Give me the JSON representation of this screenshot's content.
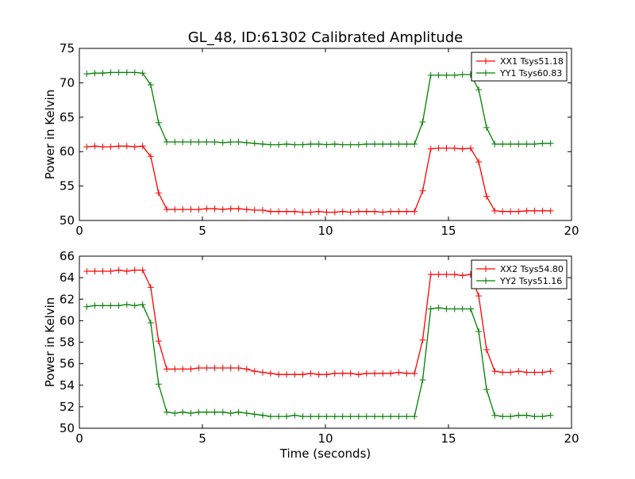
{
  "figure": {
    "title": "GL_48, ID:61302 Calibrated Amplitude"
  },
  "colors": {
    "red": "#ff0000",
    "green": "#008000"
  },
  "chart_data": [
    {
      "type": "line",
      "title": "GL_48, ID:61302 Calibrated Amplitude",
      "xlabel": "",
      "ylabel": "Power in Kelvin",
      "xlim": [
        0,
        20
      ],
      "ylim": [
        50,
        75
      ],
      "xticks": [
        "0",
        "5",
        "10",
        "15",
        "20"
      ],
      "yticks": [
        "50",
        "55",
        "60",
        "65",
        "70",
        "75"
      ],
      "legend_position": "top-right",
      "x": [
        0.3,
        0.63,
        0.95,
        1.27,
        1.6,
        1.93,
        2.25,
        2.57,
        2.9,
        3.22,
        3.55,
        3.88,
        4.2,
        4.53,
        4.85,
        5.17,
        5.5,
        5.83,
        6.15,
        6.47,
        6.8,
        7.12,
        7.45,
        7.77,
        8.1,
        8.42,
        8.75,
        9.08,
        9.4,
        9.73,
        10.05,
        10.38,
        10.7,
        11.02,
        11.35,
        11.67,
        12.0,
        12.33,
        12.65,
        12.98,
        13.3,
        13.62,
        13.95,
        14.28,
        14.6,
        14.92,
        15.25,
        15.57,
        15.9,
        16.23,
        16.55,
        16.88,
        17.2,
        17.52,
        17.85,
        18.18,
        18.5,
        18.82,
        19.15
      ],
      "series": [
        {
          "name": "XX1 Tsys51.18",
          "color": "#ff0000",
          "values": [
            60.7,
            60.8,
            60.7,
            60.7,
            60.8,
            60.8,
            60.7,
            60.8,
            59.3,
            54.0,
            51.6,
            51.6,
            51.6,
            51.6,
            51.6,
            51.7,
            51.7,
            51.6,
            51.7,
            51.7,
            51.6,
            51.5,
            51.5,
            51.3,
            51.3,
            51.3,
            51.3,
            51.2,
            51.2,
            51.3,
            51.2,
            51.2,
            51.3,
            51.2,
            51.3,
            51.3,
            51.3,
            51.2,
            51.3,
            51.3,
            51.3,
            51.3,
            54.3,
            60.4,
            60.5,
            60.5,
            60.5,
            60.4,
            60.5,
            58.5,
            53.5,
            51.4,
            51.3,
            51.3,
            51.3,
            51.4,
            51.4,
            51.4,
            51.4
          ],
          "x_override": [
            0.3,
            0.63,
            0.95,
            1.27,
            1.6,
            1.93,
            2.25,
            2.45,
            2.72,
            3.0,
            3.3,
            3.62,
            3.95,
            4.27,
            4.6,
            4.92,
            5.25,
            5.57,
            5.9,
            6.22,
            6.55,
            6.87,
            7.2,
            7.52,
            7.85,
            8.17,
            8.5,
            8.82,
            9.15,
            9.47,
            9.8,
            10.12,
            10.45,
            10.77,
            11.1,
            11.42,
            11.75,
            12.07,
            12.4,
            12.72,
            12.92,
            13.0,
            13.3,
            13.58,
            13.9,
            14.22,
            14.55,
            14.87,
            15.0,
            15.27,
            15.55,
            15.85,
            16.17,
            16.5,
            16.82,
            17.15,
            17.47,
            17.8,
            19.15
          ]
        },
        {
          "name": "YY1 Tsys60.83",
          "color": "#008000",
          "values": [
            71.3,
            71.4,
            71.4,
            71.5,
            71.5,
            71.5,
            71.5,
            71.4,
            69.7,
            64.2,
            61.4,
            61.4,
            61.4,
            61.4,
            61.4,
            61.4,
            61.4,
            61.3,
            61.4,
            61.4,
            61.3,
            61.2,
            61.1,
            61.0,
            61.0,
            61.1,
            61.0,
            61.0,
            61.1,
            61.1,
            61.0,
            61.1,
            61.0,
            61.0,
            61.0,
            61.1,
            61.1,
            61.1,
            61.1,
            61.1,
            61.1,
            61.1,
            64.3,
            71.1,
            71.1,
            71.1,
            71.1,
            71.2,
            71.2,
            69.0,
            63.5,
            61.1,
            61.1,
            61.1,
            61.1,
            61.1,
            61.1,
            61.2,
            61.2
          ]
        }
      ]
    },
    {
      "type": "line",
      "title": "",
      "xlabel": "Time (seconds)",
      "ylabel": "Power in Kelvin",
      "xlim": [
        0,
        20
      ],
      "ylim": [
        50,
        66
      ],
      "xticks": [
        "0",
        "5",
        "10",
        "15",
        "20"
      ],
      "yticks": [
        "50",
        "52",
        "54",
        "56",
        "58",
        "60",
        "62",
        "64",
        "66"
      ],
      "legend_position": "top-right",
      "series": [
        {
          "name": "XX2 Tsys54.80",
          "color": "#ff0000",
          "values": [
            64.6,
            64.6,
            64.6,
            64.6,
            64.7,
            64.6,
            64.7,
            64.7,
            63.1,
            58.1,
            55.5,
            55.5,
            55.5,
            55.5,
            55.6,
            55.6,
            55.6,
            55.6,
            55.6,
            55.6,
            55.5,
            55.3,
            55.2,
            55.1,
            55.0,
            55.0,
            55.0,
            55.0,
            55.1,
            55.0,
            55.0,
            55.1,
            55.1,
            55.1,
            55.0,
            55.1,
            55.1,
            55.1,
            55.1,
            55.2,
            55.1,
            55.1,
            58.2,
            64.3,
            64.3,
            64.3,
            64.3,
            64.2,
            64.3,
            62.3,
            57.3,
            55.3,
            55.2,
            55.2,
            55.3,
            55.2,
            55.2,
            55.2,
            55.3
          ]
        },
        {
          "name": "YY2 Tsys51.16",
          "color": "#008000",
          "values": [
            61.3,
            61.4,
            61.4,
            61.4,
            61.4,
            61.5,
            61.4,
            61.5,
            59.8,
            54.1,
            51.5,
            51.4,
            51.5,
            51.4,
            51.5,
            51.5,
            51.5,
            51.5,
            51.4,
            51.5,
            51.4,
            51.3,
            51.2,
            51.1,
            51.1,
            51.1,
            51.2,
            51.1,
            51.1,
            51.1,
            51.1,
            51.1,
            51.1,
            51.1,
            51.1,
            51.1,
            51.1,
            51.1,
            51.1,
            51.1,
            51.1,
            51.1,
            54.5,
            61.1,
            61.2,
            61.1,
            61.1,
            61.1,
            61.1,
            59.0,
            53.6,
            51.2,
            51.1,
            51.1,
            51.2,
            51.2,
            51.1,
            51.1,
            51.2
          ]
        }
      ]
    }
  ]
}
